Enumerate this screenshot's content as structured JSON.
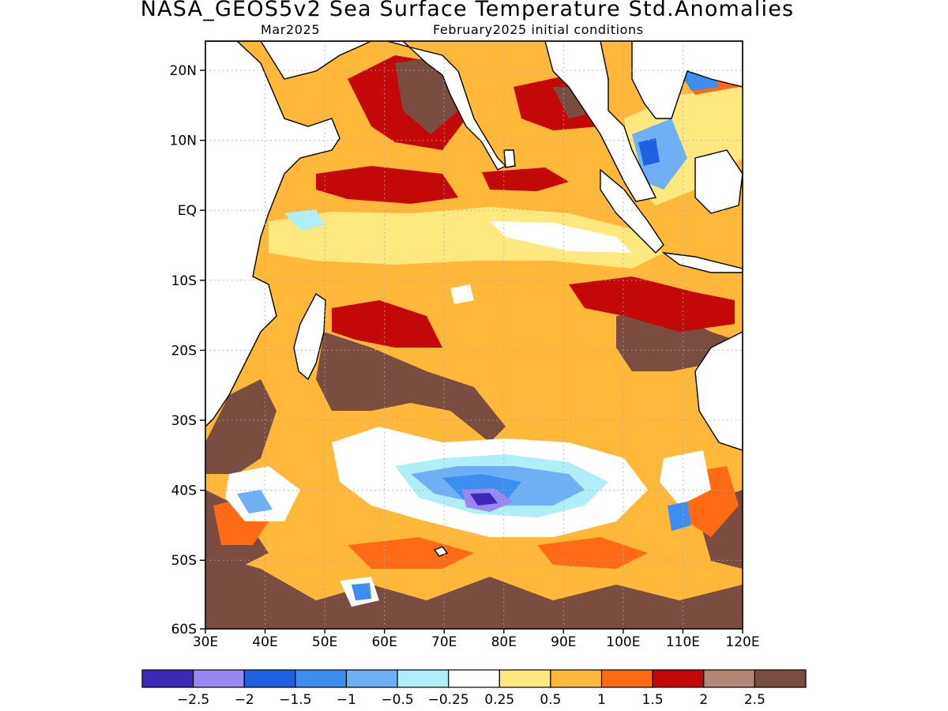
{
  "title": "NASA_GEOS5v2 Sea Surface Temperature Std.Anomalies",
  "subtitle_left": "Mar2025",
  "subtitle_right": "February2025 initial conditions",
  "map": {
    "lat_labels": [
      "20N",
      "10N",
      "EQ",
      "10S",
      "20S",
      "30S",
      "40S",
      "50S",
      "60S"
    ],
    "lon_labels": [
      "30E",
      "40E",
      "50E",
      "60E",
      "70E",
      "80E",
      "90E",
      "100E",
      "110E",
      "120E"
    ],
    "region": "Indian Ocean",
    "colors": {
      "land": "#ffffff",
      "coastline": "#000000",
      "grid": "#aaaaaa"
    }
  },
  "colorbar": {
    "colors": [
      "#3b2ab8",
      "#9a88f2",
      "#1f60e0",
      "#3c8ff0",
      "#6fb0f5",
      "#b0effa",
      "#ffffff",
      "#ffe87e",
      "#ffb83a",
      "#ff6a14",
      "#c30808",
      "#b48674",
      "#7b4c40"
    ],
    "labels": [
      "−2.5",
      "−2",
      "−1.5",
      "−1",
      "−0.5",
      "−0.25",
      "0.25",
      "0.5",
      "1",
      "1.5",
      "2",
      "2.5"
    ]
  }
}
